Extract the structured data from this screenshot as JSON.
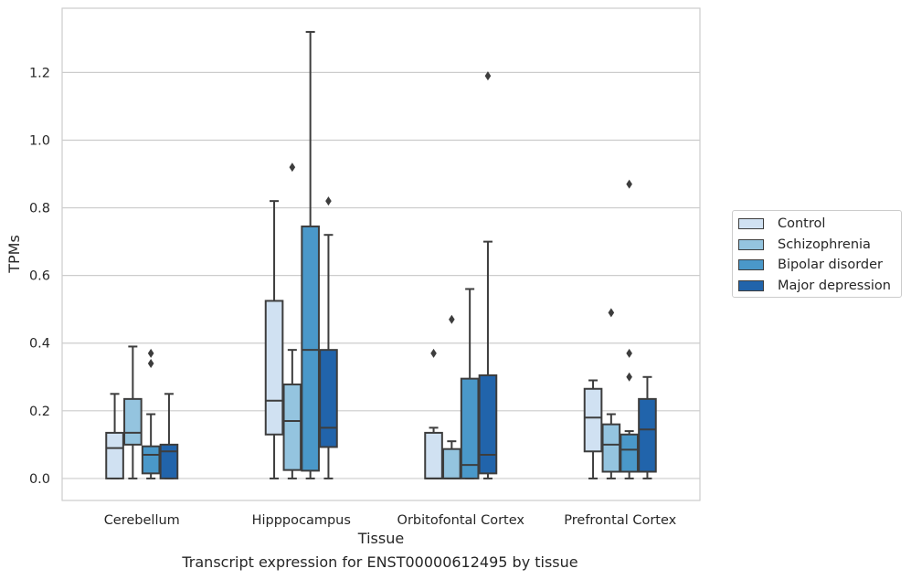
{
  "chart_data": {
    "type": "box",
    "title": "",
    "caption": "Transcript expression for ENST00000612495 by tissue",
    "xlabel": "Tissue",
    "ylabel": "TPMs",
    "ylim": [
      -0.065,
      1.39
    ],
    "yticks": [
      0.0,
      0.2,
      0.4,
      0.6,
      0.8,
      1.0,
      1.2
    ],
    "ytick_labels": [
      "0.0",
      "0.2",
      "0.4",
      "0.6",
      "0.8",
      "1.0",
      "1.2"
    ],
    "grid": "horizontal",
    "legend_position": "right",
    "categories": [
      "Cerebellum",
      "Hipppocampus",
      "Orbitofontal Cortex",
      "Prefrontal Cortex"
    ],
    "series": [
      {
        "name": "Control",
        "color": "#d0e1f2",
        "boxes": [
          {
            "whislo": 0.0,
            "q1": 0.0,
            "med": 0.09,
            "q3": 0.135,
            "whishi": 0.25,
            "fliers": []
          },
          {
            "whislo": 0.0,
            "q1": 0.13,
            "med": 0.23,
            "q3": 0.525,
            "whishi": 0.82,
            "fliers": []
          },
          {
            "whislo": 0.0,
            "q1": 0.0,
            "med": 0.0,
            "q3": 0.135,
            "whishi": 0.15,
            "fliers": [
              0.37
            ]
          },
          {
            "whislo": 0.0,
            "q1": 0.08,
            "med": 0.18,
            "q3": 0.265,
            "whishi": 0.29,
            "fliers": []
          }
        ]
      },
      {
        "name": "Schizophrenia",
        "color": "#94c4df",
        "boxes": [
          {
            "whislo": 0.0,
            "q1": 0.1,
            "med": 0.135,
            "q3": 0.235,
            "whishi": 0.39,
            "fliers": []
          },
          {
            "whislo": 0.0,
            "q1": 0.025,
            "med": 0.17,
            "q3": 0.278,
            "whishi": 0.38,
            "fliers": [
              0.92
            ]
          },
          {
            "whislo": 0.0,
            "q1": 0.0,
            "med": 0.0,
            "q3": 0.087,
            "whishi": 0.11,
            "fliers": [
              0.47
            ]
          },
          {
            "whislo": 0.0,
            "q1": 0.02,
            "med": 0.1,
            "q3": 0.16,
            "whishi": 0.19,
            "fliers": [
              0.49
            ]
          }
        ]
      },
      {
        "name": "Bipolar disorder",
        "color": "#4a98c9",
        "boxes": [
          {
            "whislo": 0.0,
            "q1": 0.015,
            "med": 0.07,
            "q3": 0.095,
            "whishi": 0.19,
            "fliers": [
              0.34,
              0.37
            ]
          },
          {
            "whislo": 0.0,
            "q1": 0.023,
            "med": 0.38,
            "q3": 0.745,
            "whishi": 1.32,
            "fliers": []
          },
          {
            "whislo": 0.0,
            "q1": 0.0,
            "med": 0.04,
            "q3": 0.295,
            "whishi": 0.56,
            "fliers": []
          },
          {
            "whislo": 0.0,
            "q1": 0.02,
            "med": 0.085,
            "q3": 0.13,
            "whishi": 0.14,
            "fliers": [
              0.3,
              0.37,
              0.87
            ]
          }
        ]
      },
      {
        "name": "Major depression",
        "color": "#2164ab",
        "boxes": [
          {
            "whislo": 0.0,
            "q1": 0.0,
            "med": 0.08,
            "q3": 0.1,
            "whishi": 0.25,
            "fliers": []
          },
          {
            "whislo": 0.0,
            "q1": 0.093,
            "med": 0.15,
            "q3": 0.38,
            "whishi": 0.72,
            "fliers": [
              0.82
            ]
          },
          {
            "whislo": 0.0,
            "q1": 0.015,
            "med": 0.07,
            "q3": 0.305,
            "whishi": 0.7,
            "fliers": [
              1.19
            ]
          },
          {
            "whislo": 0.0,
            "q1": 0.02,
            "med": 0.145,
            "q3": 0.235,
            "whishi": 0.3,
            "fliers": []
          }
        ]
      }
    ]
  }
}
